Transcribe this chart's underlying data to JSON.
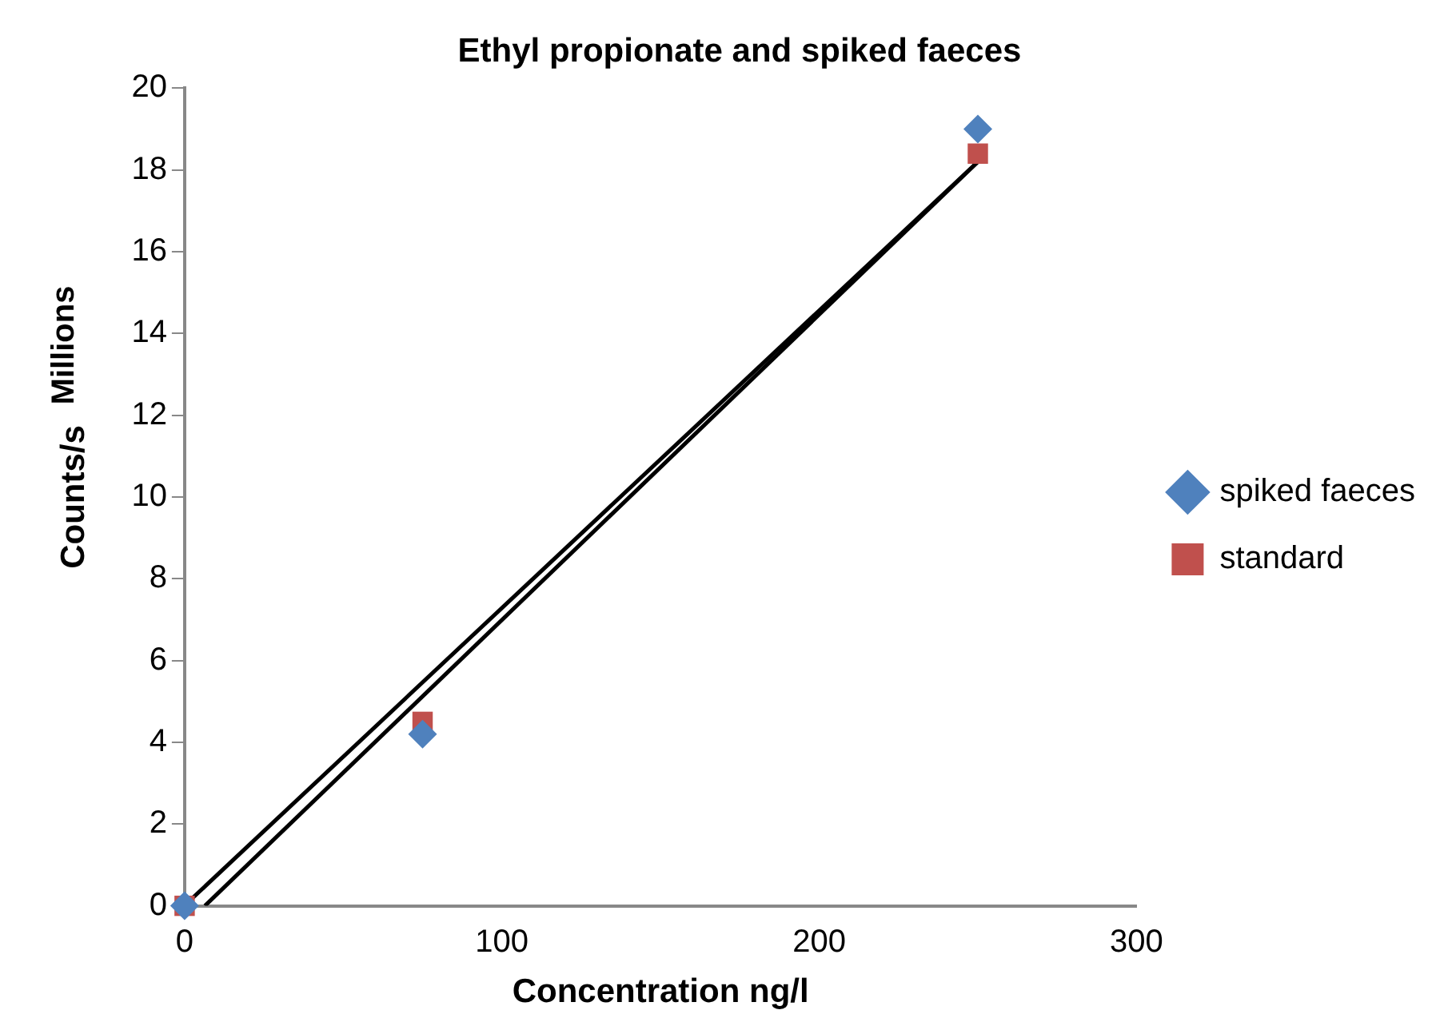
{
  "chart_data": {
    "type": "scatter",
    "title": "Ethyl propionate and spiked faeces",
    "xlabel": "Concentration ng/l",
    "ylabel": "Counts/s",
    "annotations": [
      "Millions"
    ],
    "xlim": [
      0,
      300
    ],
    "xticks": [
      0,
      100,
      200,
      300
    ],
    "ylim": [
      0,
      20
    ],
    "yticks": [
      0,
      2,
      4,
      6,
      8,
      10,
      12,
      14,
      16,
      18,
      20
    ],
    "grid": false,
    "legend": "right",
    "series": [
      {
        "name": "spiked faeces",
        "color": "#4f81bd",
        "marker": "diamond",
        "x": [
          0,
          75,
          250
        ],
        "values": [
          0,
          4.2,
          19
        ]
      },
      {
        "name": "standard",
        "color": "#c0504d",
        "marker": "square",
        "x": [
          0,
          75,
          250
        ],
        "values": [
          0,
          4.5,
          18.4
        ]
      },
      {
        "type": "line",
        "color": "#000000",
        "marker": "none",
        "x": [
          0.7,
          250
        ],
        "values": [
          0.06,
          18.2
        ]
      },
      {
        "type": "line",
        "color": "#000000",
        "marker": "none",
        "x": [
          6.4,
          250
        ],
        "values": [
          0,
          18.2
        ]
      }
    ]
  }
}
